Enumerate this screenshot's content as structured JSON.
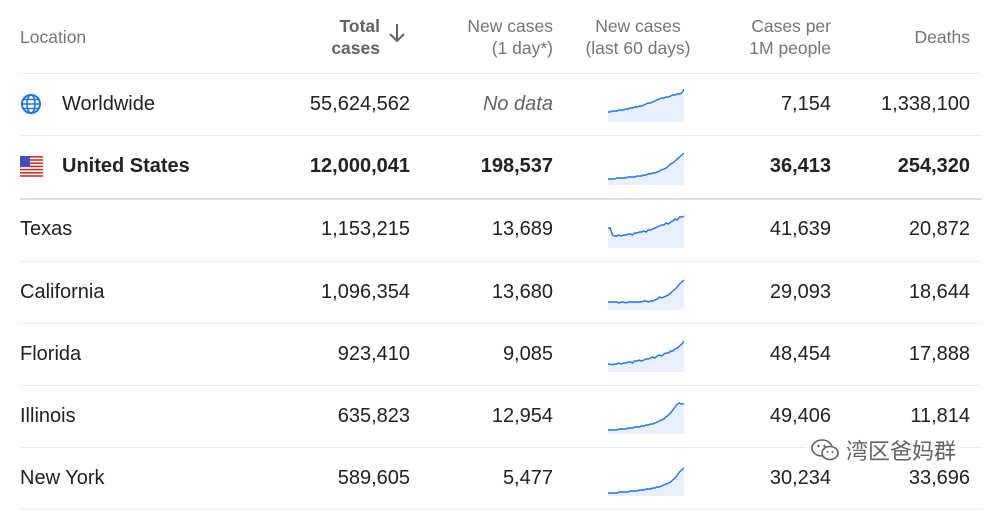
{
  "header": {
    "location": "Location",
    "total_line1": "Total",
    "total_line2": "cases",
    "new_line1": "New cases",
    "new_line2": "(1 day*)",
    "trend_line1": "New cases",
    "trend_line2": "(last 60 days)",
    "per_line1": "Cases per",
    "per_line2": "1M people",
    "deaths": "Deaths"
  },
  "rows": [
    {
      "location": "Worldwide",
      "total": "55,624,562",
      "new": "No data",
      "per_million": "7,154",
      "deaths": "1,338,100",
      "icon": "globe-icon",
      "trend": [
        10,
        10,
        11,
        11,
        11,
        12,
        12,
        12,
        13,
        13,
        14,
        14,
        15,
        15,
        16,
        16,
        17,
        18,
        19,
        19,
        20,
        21,
        22,
        23,
        24,
        24,
        25,
        25,
        26,
        27,
        27,
        28,
        28,
        29,
        33
      ]
    },
    {
      "location": "United States",
      "total": "12,000,041",
      "new": "198,537",
      "per_million": "36,413",
      "deaths": "254,320",
      "icon": "us-flag-icon",
      "trend": [
        6,
        6,
        6,
        6,
        7,
        7,
        7,
        7,
        7,
        8,
        8,
        8,
        8,
        9,
        9,
        9,
        10,
        10,
        11,
        11,
        12,
        12,
        13,
        14,
        15,
        16,
        17,
        19,
        21,
        22,
        24,
        26,
        28,
        30,
        32
      ]
    },
    {
      "location": "Texas",
      "total": "1,153,215",
      "new": "13,689",
      "per_million": "41,639",
      "deaths": "20,872",
      "icon": "",
      "trend": [
        20,
        20,
        13,
        12,
        12,
        13,
        12,
        13,
        13,
        14,
        14,
        13,
        15,
        15,
        16,
        16,
        17,
        16,
        18,
        18,
        19,
        20,
        21,
        22,
        23,
        23,
        25,
        24,
        26,
        27,
        29,
        28,
        31,
        31,
        32
      ]
    },
    {
      "location": "California",
      "total": "1,096,354",
      "new": "13,680",
      "per_million": "29,093",
      "deaths": "18,644",
      "icon": "",
      "trend": [
        8,
        8,
        8,
        8,
        8,
        7,
        8,
        8,
        7,
        8,
        8,
        8,
        8,
        8,
        8,
        8,
        9,
        9,
        8,
        9,
        9,
        10,
        11,
        13,
        12,
        13,
        14,
        15,
        17,
        19,
        21,
        23,
        26,
        28,
        30
      ]
    },
    {
      "location": "Florida",
      "total": "923,410",
      "new": "9,085",
      "per_million": "48,454",
      "deaths": "17,888",
      "icon": "",
      "trend": [
        8,
        8,
        7,
        8,
        8,
        9,
        8,
        9,
        9,
        10,
        10,
        9,
        11,
        11,
        12,
        11,
        12,
        13,
        13,
        14,
        15,
        14,
        16,
        17,
        16,
        18,
        19,
        19,
        21,
        21,
        23,
        24,
        26,
        28,
        31
      ]
    },
    {
      "location": "Illinois",
      "total": "635,823",
      "new": "12,954",
      "per_million": "49,406",
      "deaths": "11,814",
      "icon": "",
      "trend": [
        4,
        4,
        4,
        4,
        4,
        5,
        5,
        5,
        5,
        6,
        6,
        6,
        7,
        7,
        7,
        8,
        8,
        9,
        9,
        10,
        10,
        11,
        12,
        13,
        14,
        15,
        17,
        19,
        21,
        24,
        27,
        30,
        31,
        30,
        30
      ]
    },
    {
      "location": "New York",
      "total": "589,605",
      "new": "5,477",
      "per_million": "30,234",
      "deaths": "33,696",
      "icon": "",
      "trend": [
        3,
        3,
        3,
        3,
        3,
        4,
        4,
        4,
        4,
        4,
        5,
        5,
        5,
        5,
        6,
        6,
        6,
        7,
        7,
        7,
        8,
        8,
        9,
        9,
        10,
        11,
        12,
        13,
        14,
        16,
        18,
        21,
        24,
        26,
        28
      ]
    }
  ],
  "watermark": "湾区爸妈群",
  "colors": {
    "accent": "#1a73e8",
    "spark_fill": "#e8f0fe",
    "divider": "#e8eaed"
  }
}
